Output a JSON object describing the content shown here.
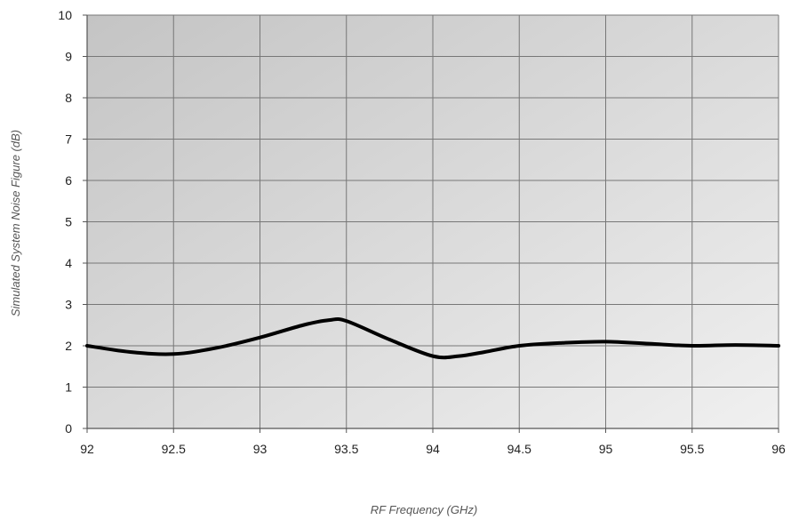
{
  "chart_data": {
    "type": "line",
    "title": "",
    "xlabel": "RF Frequency (GHz)",
    "ylabel": "Simulated System Noise Figure (dB)",
    "xlim": [
      92,
      96
    ],
    "ylim": [
      0,
      10
    ],
    "x_ticks": [
      "92",
      "92.5",
      "93",
      "93.5",
      "94",
      "94.5",
      "95",
      "95.5",
      "96"
    ],
    "y_ticks": [
      "0",
      "1",
      "2",
      "3",
      "4",
      "5",
      "6",
      "7",
      "8",
      "9",
      "10"
    ],
    "grid": true,
    "legend": "none",
    "series": [
      {
        "x": [
          92,
          92.25,
          92.5,
          92.75,
          93,
          93.25,
          93.4,
          93.5,
          93.75,
          94,
          94.15,
          94.3,
          94.5,
          94.75,
          95,
          95.25,
          95.5,
          95.75,
          96
        ],
        "y": [
          2.0,
          1.85,
          1.8,
          1.95,
          2.2,
          2.5,
          2.62,
          2.6,
          2.15,
          1.75,
          1.75,
          1.85,
          2.0,
          2.07,
          2.1,
          2.05,
          2.0,
          2.02,
          2.0
        ]
      }
    ],
    "colors": {
      "line": "#000000",
      "grid": "#777777",
      "plot_bg_dark": "#c4c4c4",
      "plot_bg_light": "#f0f0f0"
    }
  }
}
